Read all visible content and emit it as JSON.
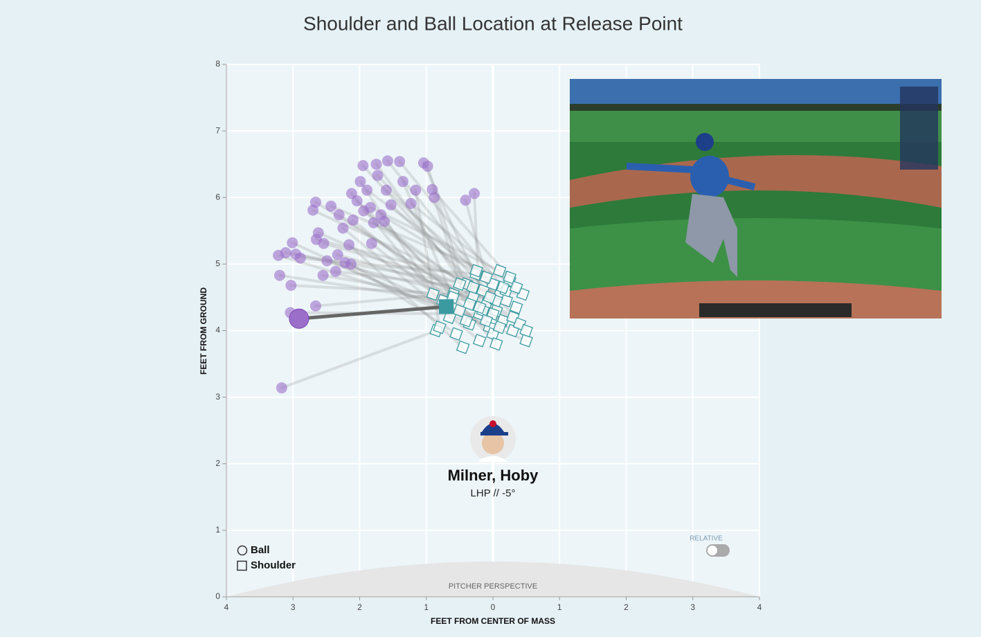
{
  "chart_data": {
    "type": "scatter",
    "title": "Shoulder and Ball Location at Release Point",
    "xlabel": "FEET FROM CENTER OF MASS",
    "ylabel": "FEET FROM GROUND",
    "xlim": [
      -4,
      4
    ],
    "ylim": [
      0,
      8
    ],
    "xticks": [
      {
        "value": -4,
        "label": "4"
      },
      {
        "value": -3,
        "label": "3"
      },
      {
        "value": -2,
        "label": "2"
      },
      {
        "value": -1,
        "label": "1"
      },
      0,
      1,
      2,
      3,
      4
    ],
    "yticks": [
      0,
      1,
      2,
      3,
      4,
      5,
      6,
      7,
      8
    ],
    "grid": true,
    "legend": "lower left",
    "highlight_index": 0,
    "player": {
      "name": "Milner, Hoby",
      "info": "LHP // -5°"
    },
    "toggle_label": "RELATIVE",
    "annotation": "PITCHER PERSPECTIVE",
    "series": [
      {
        "name": "Ball",
        "color": "#9b6fc9",
        "x": [
          -2.91,
          -3.17,
          -3.2,
          -3.03,
          -3.22,
          -3.11,
          -3.01,
          -2.96,
          -2.89,
          -3.04,
          -2.66,
          -2.55,
          -2.49,
          -2.65,
          -2.62,
          -2.54,
          -2.66,
          -2.7,
          -2.43,
          -2.31,
          -2.33,
          -2.36,
          -2.22,
          -2.13,
          -2.16,
          -2.25,
          -2.1,
          -2.12,
          -1.99,
          -1.95,
          -1.89,
          -1.84,
          -1.79,
          -1.73,
          -1.75,
          -1.82,
          -1.68,
          -1.58,
          -1.6,
          -1.53,
          -1.4,
          -1.35,
          -1.23,
          -1.16,
          -1.04,
          -0.98,
          -0.91,
          -0.88,
          -0.41,
          -0.28,
          -1.94,
          -2.04,
          -1.63
        ],
        "y": [
          4.18,
          3.14,
          4.83,
          4.68,
          5.13,
          5.17,
          5.32,
          5.15,
          5.09,
          4.27,
          4.37,
          4.83,
          5.05,
          5.37,
          5.47,
          5.31,
          5.93,
          5.81,
          5.87,
          5.74,
          5.14,
          4.89,
          5.02,
          5.0,
          5.29,
          5.54,
          5.66,
          6.06,
          6.24,
          6.48,
          6.11,
          5.85,
          5.62,
          6.33,
          6.5,
          5.31,
          5.74,
          6.55,
          6.11,
          5.89,
          6.54,
          6.24,
          5.91,
          6.11,
          6.52,
          6.47,
          6.12,
          6.0,
          5.96,
          6.06,
          5.8,
          5.95,
          5.64
        ]
      },
      {
        "name": "Shoulder",
        "color": "#3a9aa0",
        "x": [
          -0.7,
          -0.85,
          -0.75,
          -0.6,
          -0.5,
          -0.4,
          -0.35,
          -0.3,
          -0.25,
          -0.2,
          -0.15,
          -0.1,
          -0.05,
          0.0,
          0.05,
          0.1,
          0.15,
          0.2,
          0.25,
          0.3,
          0.35,
          0.45,
          0.5,
          -0.55,
          -0.45,
          -0.2,
          0.0,
          -0.9,
          -0.65,
          -0.3,
          -0.1,
          0.1,
          0.3,
          0.05,
          -0.15,
          -0.4,
          0.2,
          0.4,
          -0.25,
          -0.05,
          0.15,
          -0.6,
          0.35,
          -0.8,
          0.0,
          -0.35,
          0.25,
          -0.5,
          0.1,
          -0.2,
          0.5,
          -0.1,
          0.05
        ],
        "y": [
          4.36,
          4.0,
          4.45,
          4.55,
          4.3,
          4.7,
          4.1,
          4.5,
          4.85,
          4.25,
          4.6,
          4.4,
          4.05,
          4.7,
          4.3,
          4.55,
          4.15,
          4.45,
          4.75,
          4.0,
          4.35,
          4.55,
          3.85,
          3.95,
          3.75,
          3.85,
          3.95,
          4.55,
          4.2,
          4.65,
          4.8,
          4.9,
          4.2,
          4.45,
          4.3,
          4.15,
          4.6,
          4.1,
          4.9,
          4.5,
          4.65,
          4.5,
          4.65,
          4.05,
          4.25,
          4.4,
          4.8,
          4.7,
          4.05,
          4.35,
          4.0,
          4.15,
          3.8
        ]
      }
    ]
  }
}
